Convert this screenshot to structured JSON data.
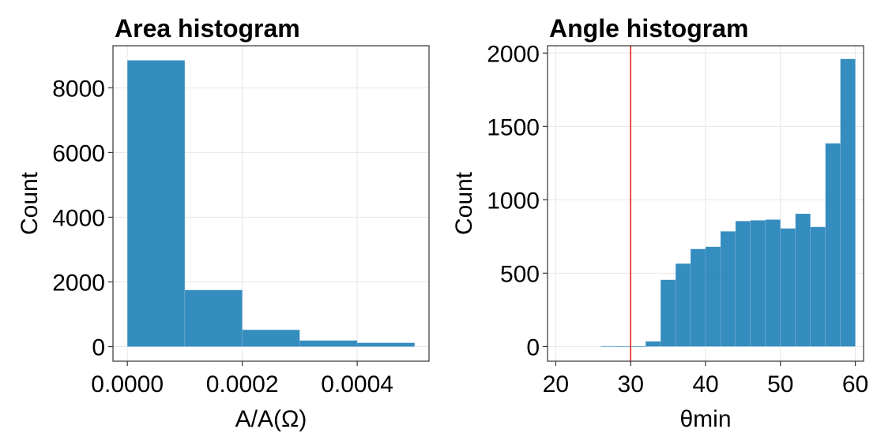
{
  "colors": {
    "bar": "#1f7fb8",
    "ref_line": "#e8221b"
  },
  "chart_data": [
    {
      "type": "bar",
      "title": "Area histogram",
      "xlabel": "A/A(Ω)",
      "ylabel": "Count",
      "bin_edges": [
        0.0,
        0.0001,
        0.0002,
        0.0003,
        0.0004,
        0.0005
      ],
      "values": [
        8850,
        1750,
        520,
        190,
        120
      ],
      "xlim": [
        -2.5e-05,
        0.000525
      ],
      "ylim": [
        -450,
        9300
      ],
      "xticks": [
        0.0,
        0.0002,
        0.0004
      ],
      "xtick_labels": [
        "0.0000",
        "0.0002",
        "0.0004"
      ],
      "yticks": [
        0,
        2000,
        4000,
        6000,
        8000
      ],
      "ytick_labels": [
        "0",
        "2000",
        "4000",
        "6000",
        "8000"
      ],
      "grid": true
    },
    {
      "type": "bar",
      "title": "Angle histogram",
      "xlabel": "θmin",
      "ylabel": "Count",
      "bin_edges": [
        20,
        22,
        24,
        26,
        28,
        30,
        32,
        34,
        36,
        38,
        40,
        42,
        44,
        46,
        48,
        50,
        52,
        54,
        56,
        58,
        60
      ],
      "values": [
        0,
        0,
        0,
        3,
        2,
        1,
        35,
        455,
        565,
        665,
        680,
        785,
        855,
        860,
        865,
        805,
        905,
        815,
        1385,
        1960
      ],
      "xlim": [
        18.9,
        61.1
      ],
      "ylim": [
        -100,
        2050
      ],
      "xticks": [
        20,
        30,
        40,
        50,
        60
      ],
      "xtick_labels": [
        "20",
        "30",
        "40",
        "50",
        "60"
      ],
      "yticks": [
        0,
        500,
        1000,
        1500,
        2000
      ],
      "ytick_labels": [
        "0",
        "500",
        "1000",
        "1500",
        "2000"
      ],
      "vline": 30,
      "grid": true
    }
  ]
}
